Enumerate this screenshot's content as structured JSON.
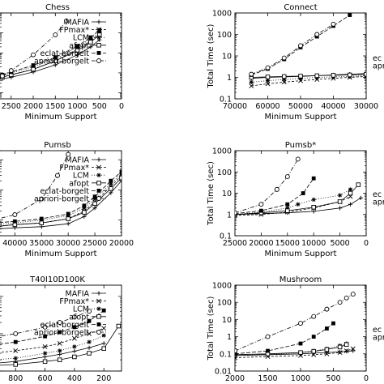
{
  "chart_data": [
    {
      "type": "line",
      "title": "Chess",
      "xlabel": "Minimum Support",
      "ylabel": "",
      "x_ticks": [
        2500,
        2000,
        1500,
        1000,
        500,
        0
      ],
      "xlim": [
        2900,
        0
      ],
      "ylim": [
        0.05,
        1000
      ],
      "yscale": "log",
      "y_ticks": [],
      "legend": "top-right",
      "series": [
        {
          "name": "MAFIA",
          "x": [
            2700,
            2500,
            2000,
            1500,
            1000,
            700,
            500
          ],
          "y": [
            0.5,
            0.6,
            1.1,
            2.5,
            8,
            20,
            45
          ]
        },
        {
          "name": "FPmax*",
          "x": [
            2700,
            2500,
            2000,
            1500,
            1000,
            700,
            500
          ],
          "y": [
            0.6,
            0.8,
            1.5,
            4,
            15,
            40,
            90
          ]
        },
        {
          "name": "LCM",
          "x": [
            2700,
            2500,
            2000,
            1500,
            1000,
            700,
            500
          ],
          "y": [
            0.7,
            1,
            2,
            5,
            20,
            50,
            110
          ]
        },
        {
          "name": "afopt",
          "x": [
            2700,
            2500,
            2000,
            1500,
            1000,
            700,
            500
          ],
          "y": [
            0.6,
            0.8,
            1.5,
            4,
            13,
            35,
            80
          ]
        },
        {
          "name": "eclat-borgelt",
          "x": [
            2700,
            2500,
            2000,
            1500,
            1000,
            700,
            500
          ],
          "y": [
            0.8,
            1.1,
            2.4,
            6,
            22,
            60,
            140
          ]
        },
        {
          "name": "apriori-borgelt",
          "x": [
            2700,
            2500,
            2000,
            1500,
            1250
          ],
          "y": [
            0.7,
            1.3,
            8,
            80,
            400
          ]
        }
      ]
    },
    {
      "type": "line",
      "title": "Connect",
      "xlabel": "Minimum Support",
      "ylabel": "Total Time (sec)",
      "x_ticks": [
        70000,
        60000,
        50000,
        40000,
        30000
      ],
      "xlim": [
        70000,
        30000
      ],
      "ylim": [
        0.1,
        1000
      ],
      "yscale": "log",
      "y_ticks": [
        0.1,
        1,
        10,
        100,
        1000
      ],
      "legend": "right",
      "legend_visible": [
        "ec",
        "apri"
      ],
      "series": [
        {
          "name": "MAFIA",
          "x": [
            65000,
            60000,
            55000,
            50000,
            45000,
            40000,
            35000,
            30000
          ],
          "y": [
            0.9,
            1,
            1.05,
            1.1,
            1.2,
            1.3,
            1.4,
            1.5
          ]
        },
        {
          "name": "FPmax*",
          "x": [
            65000,
            60000,
            55000,
            50000,
            45000,
            40000,
            35000,
            30000
          ],
          "y": [
            0.4,
            0.5,
            0.6,
            0.7,
            0.8,
            0.9,
            1,
            1.1
          ]
        },
        {
          "name": "LCM",
          "x": [
            65000,
            60000,
            55000,
            50000,
            45000,
            40000,
            35000,
            30000
          ],
          "y": [
            0.6,
            0.7,
            0.8,
            0.9,
            1,
            1.05,
            1.1,
            1.2
          ]
        },
        {
          "name": "afopt",
          "x": [
            65000,
            60000,
            55000,
            50000,
            45000,
            40000,
            35000,
            30000
          ],
          "y": [
            1,
            1.05,
            1.1,
            1.15,
            1.2,
            1.25,
            1.3,
            1.4
          ]
        },
        {
          "name": "eclat-borgelt",
          "x": [
            65000,
            60000,
            55000,
            50000,
            45000,
            40000,
            35000
          ],
          "y": [
            1.3,
            2.5,
            7,
            25,
            80,
            250,
            800
          ]
        },
        {
          "name": "apriori-borgelt",
          "x": [
            65000,
            60000,
            55000,
            50000,
            45000,
            40000
          ],
          "y": [
            1.4,
            2.8,
            8,
            30,
            100,
            300
          ]
        }
      ]
    },
    {
      "type": "line",
      "title": "Pumsb",
      "xlabel": "Minimum Support",
      "ylabel": "",
      "x_ticks": [
        40000,
        35000,
        30000,
        25000,
        20000
      ],
      "xlim": [
        44000,
        20000
      ],
      "ylim": [
        0.3,
        200
      ],
      "yscale": "log",
      "y_ticks": [],
      "legend": "top-right",
      "series": [
        {
          "name": "MAFIA",
          "x": [
            44000,
            40000,
            35000,
            30000,
            27000,
            25000,
            22000,
            20000
          ],
          "y": [
            0.5,
            0.55,
            0.6,
            0.75,
            1.3,
            2.5,
            8,
            20
          ]
        },
        {
          "name": "FPmax*",
          "x": [
            44000,
            40000,
            35000,
            30000,
            27000,
            25000,
            22000,
            20000
          ],
          "y": [
            0.6,
            0.7,
            0.8,
            1.1,
            2,
            4,
            13,
            30
          ]
        },
        {
          "name": "LCM",
          "x": [
            44000,
            40000,
            35000,
            30000,
            27000,
            25000,
            22000,
            20000
          ],
          "y": [
            0.7,
            0.8,
            1,
            1.4,
            2.5,
            5,
            16,
            35
          ]
        },
        {
          "name": "afopt",
          "x": [
            44000,
            40000,
            35000,
            30000,
            27000,
            25000,
            22000,
            20000
          ],
          "y": [
            0.6,
            0.7,
            0.8,
            1.1,
            1.8,
            3.5,
            11,
            25
          ]
        },
        {
          "name": "eclat-borgelt",
          "x": [
            44000,
            40000,
            35000,
            30000,
            27000,
            25000,
            22000,
            20000
          ],
          "y": [
            0.8,
            0.9,
            1.1,
            1.6,
            3,
            6,
            20,
            40
          ]
        },
        {
          "name": "apriori-borgelt",
          "x": [
            44000,
            40000,
            35000,
            32000,
            30000
          ],
          "y": [
            1,
            1.5,
            5,
            30,
            150
          ]
        }
      ]
    },
    {
      "type": "line",
      "title": "Pumsb*",
      "xlabel": "Minimum Support",
      "ylabel": "Total Time (sec)",
      "x_ticks": [
        25000,
        20000,
        15000,
        10000,
        5000,
        0
      ],
      "xlim": [
        25000,
        0
      ],
      "ylim": [
        0.1,
        1000
      ],
      "yscale": "log",
      "y_ticks": [
        0.1,
        1,
        10,
        100,
        1000
      ],
      "legend": "right",
      "legend_visible": [
        "ec",
        "apri"
      ],
      "series": [
        {
          "name": "MAFIA",
          "x": [
            25000,
            20000,
            15000,
            10000,
            5000,
            3000,
            1000
          ],
          "y": [
            1,
            1.1,
            1.2,
            1.4,
            2,
            3,
            6
          ]
        },
        {
          "name": "FPmax*",
          "x": [
            25000,
            20000,
            15000,
            10000,
            5000,
            3000
          ],
          "y": [
            0.9,
            1,
            1.3,
            2,
            4,
            7
          ]
        },
        {
          "name": "LCM",
          "x": [
            25000,
            20000,
            15000,
            13000,
            10000,
            5000,
            3000
          ],
          "y": [
            1,
            1.3,
            2,
            3,
            5,
            8,
            15
          ]
        },
        {
          "name": "afopt",
          "x": [
            25000,
            20000,
            15000,
            10000,
            5000,
            3000,
            1500
          ],
          "y": [
            1,
            1.2,
            1.5,
            2.2,
            4,
            10,
            25
          ]
        },
        {
          "name": "eclat-borgelt",
          "x": [
            25000,
            20000,
            15000,
            12000,
            10000
          ],
          "y": [
            1.1,
            1.5,
            3,
            10,
            50
          ]
        },
        {
          "name": "apriori-borgelt",
          "x": [
            25000,
            20000,
            17000,
            15000,
            13000
          ],
          "y": [
            1.2,
            3,
            15,
            60,
            400
          ]
        }
      ]
    },
    {
      "type": "line",
      "title": "T40I10D100K",
      "xlabel": "Minimum Support",
      "ylabel": "",
      "x_ticks": [
        800,
        600,
        400,
        200
      ],
      "xlim": [
        950,
        80
      ],
      "ylim": [
        10,
        2000
      ],
      "yscale": "log",
      "y_ticks": [],
      "legend": "top-right",
      "series": [
        {
          "name": "MAFIA",
          "x": [
            950,
            800,
            600,
            500,
            400,
            300,
            200
          ],
          "y": [
            16,
            18,
            24,
            28,
            34,
            42,
            55
          ]
        },
        {
          "name": "FPmax*",
          "x": [
            950,
            800,
            600,
            500,
            400,
            300,
            200
          ],
          "y": [
            30,
            35,
            45,
            55,
            75,
            100,
            140
          ]
        },
        {
          "name": "LCM",
          "x": [
            950,
            800,
            600,
            500,
            400,
            300,
            200
          ],
          "y": [
            20,
            22,
            30,
            35,
            45,
            60,
            90
          ]
        },
        {
          "name": "afopt",
          "x": [
            950,
            800,
            600,
            500,
            400,
            300,
            200,
            100
          ],
          "y": [
            14,
            15,
            18,
            20,
            24,
            30,
            40,
            160
          ]
        },
        {
          "name": "eclat-borgelt",
          "x": [
            950,
            800,
            600,
            500,
            400,
            300,
            200
          ],
          "y": [
            50,
            60,
            85,
            110,
            150,
            220,
            420
          ]
        },
        {
          "name": "apriori-borgelt",
          "x": [
            950,
            800,
            600,
            500,
            400,
            300
          ],
          "y": [
            80,
            100,
            150,
            200,
            280,
            400
          ]
        }
      ]
    },
    {
      "type": "line",
      "title": "Mushroom",
      "xlabel": "Minimum Support",
      "ylabel": "Total Time (sec)",
      "x_ticks": [
        2000,
        1500,
        1000,
        500,
        0
      ],
      "xlim": [
        2000,
        0
      ],
      "ylim": [
        0.01,
        1000
      ],
      "yscale": "log",
      "y_ticks": [
        0.01,
        0.1,
        1,
        10,
        100,
        1000
      ],
      "legend": "right",
      "legend_visible": [
        "ec",
        "apri"
      ],
      "series": [
        {
          "name": "MAFIA",
          "x": [
            2000,
            1500,
            1000,
            800,
            600,
            400,
            300,
            200
          ],
          "y": [
            0.08,
            0.09,
            0.1,
            0.11,
            0.12,
            0.13,
            0.14,
            0.15
          ]
        },
        {
          "name": "FPmax*",
          "x": [
            2000,
            1500,
            1000,
            800,
            600,
            400,
            300,
            200
          ],
          "y": [
            0.06,
            0.07,
            0.08,
            0.09,
            0.1,
            0.12,
            0.15,
            0.2
          ]
        },
        {
          "name": "LCM",
          "x": [
            2000,
            1500,
            1000,
            800,
            600,
            400,
            300
          ],
          "y": [
            0.08,
            0.09,
            0.12,
            0.15,
            0.2,
            0.3,
            0.4
          ]
        },
        {
          "name": "afopt",
          "x": [
            2000,
            1500,
            1000,
            800,
            600,
            400,
            300
          ],
          "y": [
            0.09,
            0.1,
            0.12,
            0.14,
            0.18,
            0.25,
            0.35
          ]
        },
        {
          "name": "eclat-borgelt",
          "x": [
            2000,
            1500,
            1000,
            800,
            600,
            500
          ],
          "y": [
            0.1,
            0.15,
            0.4,
            1,
            3,
            6
          ]
        },
        {
          "name": "apriori-borgelt",
          "x": [
            2000,
            1500,
            1000,
            800,
            600,
            400,
            300,
            200
          ],
          "y": [
            0.15,
            1,
            6,
            15,
            40,
            100,
            180,
            300
          ]
        }
      ]
    }
  ]
}
